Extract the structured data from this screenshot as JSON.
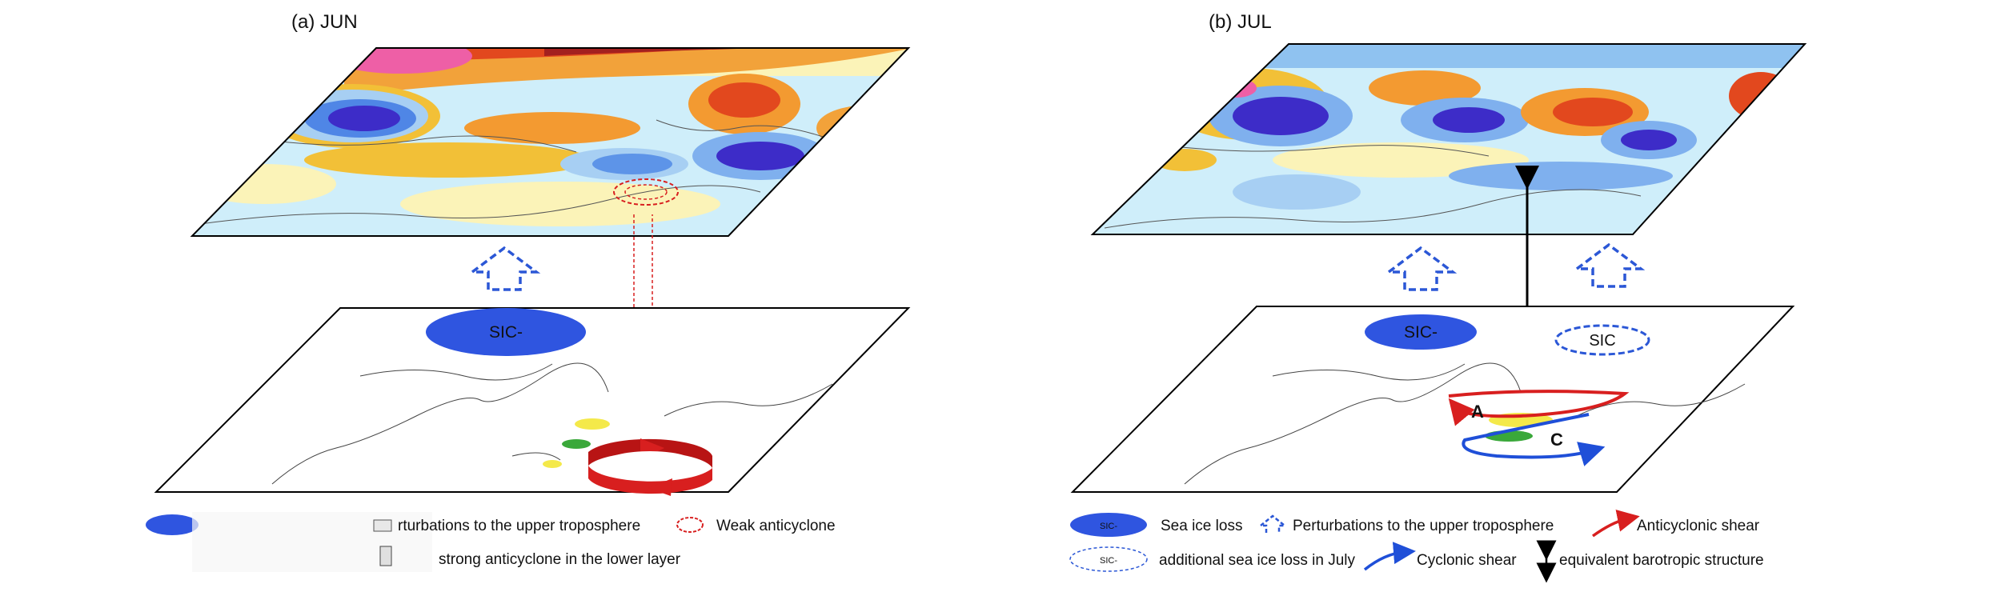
{
  "panels": [
    {
      "title": "(a) JUN",
      "sic_label": "SIC-"
    },
    {
      "title": "(b) JUL",
      "sic_label": "SIC-",
      "sic_extra_label": "SIC",
      "anticyclone_letter": "A",
      "cyclone_letter": "C"
    }
  ],
  "legend_a": {
    "perturbation": "rturbations to the upper troposphere",
    "weak_anticyclone": "Weak anticyclone",
    "strong_anticyclone": "strong anticyclone in the lower layer"
  },
  "legend_b": {
    "sea_ice_loss": "Sea ice loss",
    "ellipse_small": "SIC-",
    "perturbation": "Perturbations to the upper troposphere",
    "anticyclonic_shear": "Anticyclonic shear",
    "additional_loss": "additional sea ice loss in July",
    "cyclonic_shear": "Cyclonic shear",
    "barotropic": "equivalent barotropic structure"
  },
  "colors": {
    "sic_blue": "#2f55e0",
    "dashed_blue": "#2b57d6",
    "anticyclone_red": "#d81f1f",
    "cyclone_blue": "#1f4fd8",
    "pos_anomaly": "#f08a2b",
    "neg_anomaly": "#3b6fe0"
  }
}
